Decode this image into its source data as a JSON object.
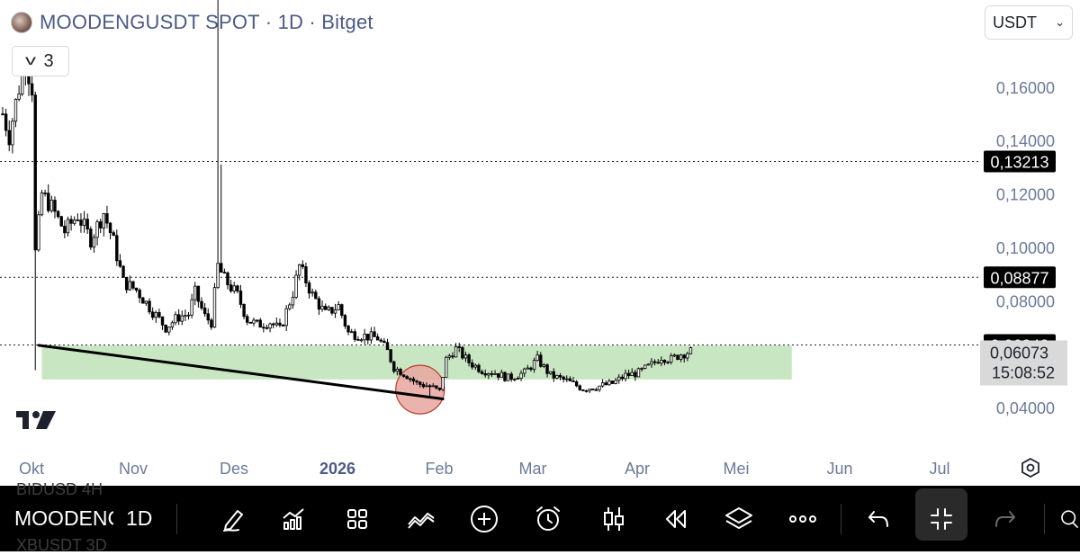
{
  "header": {
    "title": "MOODENGUSDT SPOT · 1D · Bitget",
    "indicator_count": "3",
    "currency": "USDT"
  },
  "price_scale_labels": [
    "0,16000",
    "0,14000",
    "0,12000",
    "0,10000",
    "0,08000",
    "0,04000"
  ],
  "price_tags": [
    {
      "text": "0,13213",
      "value": 0.13213
    },
    {
      "text": "0,08877",
      "value": 0.08877
    },
    {
      "text": "0,06340",
      "value": 0.0634
    }
  ],
  "current_price": {
    "text": "0,06073",
    "countdown": "15:08:52",
    "value": 0.06073
  },
  "time_axis_labels": [
    "Okt",
    "Nov",
    "Des",
    "2026",
    "Feb",
    "Mar",
    "Apr",
    "Mei",
    "Jun",
    "Jul"
  ],
  "toolbar": {
    "symbol": "MOODENGUSDT",
    "interval": "1D",
    "background_text_1": "BIDUSD  4H",
    "background_text_2": "XBUSDT  3D"
  },
  "colors": {
    "background": "#ffffff",
    "candle": "#000000",
    "support_zone": "#c8e6c2",
    "highlight_circle": "#e8a6a0",
    "axis_text": "#6b7a99",
    "tag_bg": "#000000",
    "current_bg": "#d9d9d9"
  },
  "chart_data": {
    "type": "candlestick",
    "title": "MOODENGUSDT SPOT · 1D · Bitget",
    "y_axis": {
      "min": 0.03,
      "max": 0.175,
      "ticks": [
        0.16,
        0.14,
        0.12,
        0.1,
        0.08,
        0.04
      ]
    },
    "x_axis": {
      "start": "2025-10-01",
      "end": "2026-07-12",
      "months": [
        "Okt",
        "Nov",
        "Des",
        "2026",
        "Feb",
        "Mar",
        "Apr",
        "Mei",
        "Jun",
        "Jul"
      ]
    },
    "horizontal_lines": [
      0.13213,
      0.08877,
      0.0634
    ],
    "support_zone": {
      "from_date": "2025-10-13",
      "to_date": "2026-05-31",
      "low": 0.0505,
      "high": 0.0632
    },
    "trendline": [
      {
        "date": "2025-10-12",
        "price": 0.0633
      },
      {
        "date": "2026-02-13",
        "price": 0.0432
      }
    ],
    "highlight": {
      "date": "2026-02-06",
      "price": 0.0467
    },
    "close_anchors": [
      [
        "2025-10-01",
        0.15
      ],
      [
        "2025-10-03",
        0.142
      ],
      [
        "2025-10-06",
        0.16
      ],
      [
        "2025-10-08",
        0.17
      ],
      [
        "2025-10-10",
        0.16
      ],
      [
        "2025-10-11",
        0.098
      ],
      [
        "2025-10-13",
        0.12
      ],
      [
        "2025-10-16",
        0.115
      ],
      [
        "2025-10-20",
        0.106
      ],
      [
        "2025-10-24",
        0.112
      ],
      [
        "2025-10-28",
        0.103
      ],
      [
        "2025-11-01",
        0.113
      ],
      [
        "2025-11-04",
        0.102
      ],
      [
        "2025-11-07",
        0.087
      ],
      [
        "2025-11-11",
        0.084
      ],
      [
        "2025-11-16",
        0.076
      ],
      [
        "2025-11-20",
        0.07
      ],
      [
        "2025-11-24",
        0.074
      ],
      [
        "2025-11-27",
        0.075
      ],
      [
        "2025-11-29",
        0.083
      ],
      [
        "2025-12-02",
        0.074
      ],
      [
        "2025-12-04",
        0.072
      ],
      [
        "2025-12-06",
        0.093
      ],
      [
        "2025-12-08",
        0.088
      ],
      [
        "2025-12-12",
        0.082
      ],
      [
        "2025-12-15",
        0.073
      ],
      [
        "2025-12-18",
        0.071
      ],
      [
        "2025-12-22",
        0.072
      ],
      [
        "2025-12-25",
        0.069
      ],
      [
        "2025-12-29",
        0.083
      ],
      [
        "2025-12-31",
        0.093
      ],
      [
        "2026-01-04",
        0.082
      ],
      [
        "2026-01-08",
        0.075
      ],
      [
        "2026-01-12",
        0.078
      ],
      [
        "2026-01-15",
        0.068
      ],
      [
        "2026-01-19",
        0.067
      ],
      [
        "2026-01-24",
        0.066
      ],
      [
        "2026-01-27",
        0.061
      ],
      [
        "2026-01-29",
        0.055
      ],
      [
        "2026-02-02",
        0.052
      ],
      [
        "2026-02-05",
        0.049
      ],
      [
        "2026-02-09",
        0.048
      ],
      [
        "2026-02-12",
        0.046
      ],
      [
        "2026-02-14",
        0.058
      ],
      [
        "2026-02-17",
        0.062
      ],
      [
        "2026-02-21",
        0.057
      ],
      [
        "2026-02-25",
        0.054
      ],
      [
        "2026-03-01",
        0.053
      ],
      [
        "2026-03-05",
        0.051
      ],
      [
        "2026-03-10",
        0.053
      ],
      [
        "2026-03-14",
        0.058
      ],
      [
        "2026-03-18",
        0.052
      ],
      [
        "2026-03-23",
        0.05
      ],
      [
        "2026-03-28",
        0.047
      ],
      [
        "2026-04-02",
        0.048
      ],
      [
        "2026-04-06",
        0.049
      ],
      [
        "2026-04-10",
        0.052
      ],
      [
        "2026-04-14",
        0.053
      ],
      [
        "2026-04-18",
        0.056
      ],
      [
        "2026-04-21",
        0.059
      ],
      [
        "2026-04-24",
        0.058
      ],
      [
        "2026-04-27",
        0.06
      ],
      [
        "2026-04-30",
        0.061
      ]
    ],
    "spikes": [
      {
        "date": "2025-10-10",
        "high": 0.175
      },
      {
        "date": "2025-10-11",
        "low": 0.054
      },
      {
        "date": "2025-12-06",
        "high": 0.206
      },
      {
        "date": "2025-12-07",
        "high": 0.131
      },
      {
        "date": "2026-02-09",
        "low": 0.044
      }
    ]
  }
}
